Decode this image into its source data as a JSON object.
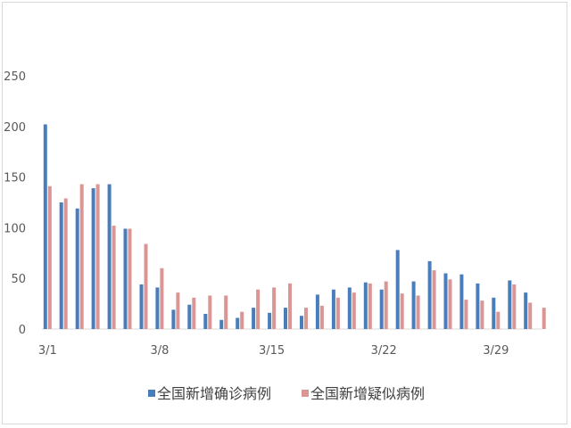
{
  "chart_data": {
    "type": "bar",
    "categories": [
      "3/1",
      "3/2",
      "3/3",
      "3/4",
      "3/5",
      "3/6",
      "3/7",
      "3/8",
      "3/9",
      "3/10",
      "3/11",
      "3/12",
      "3/13",
      "3/14",
      "3/15",
      "3/16",
      "3/17",
      "3/18",
      "3/19",
      "3/20",
      "3/21",
      "3/22",
      "3/23",
      "3/24",
      "3/25",
      "3/26",
      "3/27",
      "3/28",
      "3/29",
      "3/30",
      "3/31"
    ],
    "x_tick_labels": [
      {
        "index": 0,
        "label": "3/1"
      },
      {
        "index": 7,
        "label": "3/8"
      },
      {
        "index": 14,
        "label": "3/15"
      },
      {
        "index": 21,
        "label": "3/22"
      },
      {
        "index": 28,
        "label": "3/29"
      }
    ],
    "series": [
      {
        "name": "全国新增确诊病例",
        "color": "#4a7ebb",
        "values": [
          202,
          125,
          119,
          139,
          143,
          99,
          44,
          41,
          19,
          24,
          15,
          9,
          11,
          21,
          16,
          21,
          13,
          34,
          39,
          41,
          46,
          39,
          78,
          47,
          67,
          55,
          54,
          45,
          31,
          48,
          36
        ]
      },
      {
        "name": "全国新增疑似病例",
        "color": "#d99694",
        "values": [
          141,
          129,
          143,
          143,
          102,
          99,
          84,
          60,
          36,
          31,
          33,
          33,
          17,
          39,
          41,
          45,
          21,
          23,
          31,
          36,
          45,
          47,
          35,
          33,
          58,
          49,
          29,
          28,
          17,
          44,
          26
        ]
      }
    ],
    "extra_last_suspected": 21,
    "ylim": [
      0,
      250
    ],
    "yticks": [
      0,
      50,
      100,
      150,
      200,
      250
    ],
    "legend_position": "bottom",
    "grid": false
  }
}
